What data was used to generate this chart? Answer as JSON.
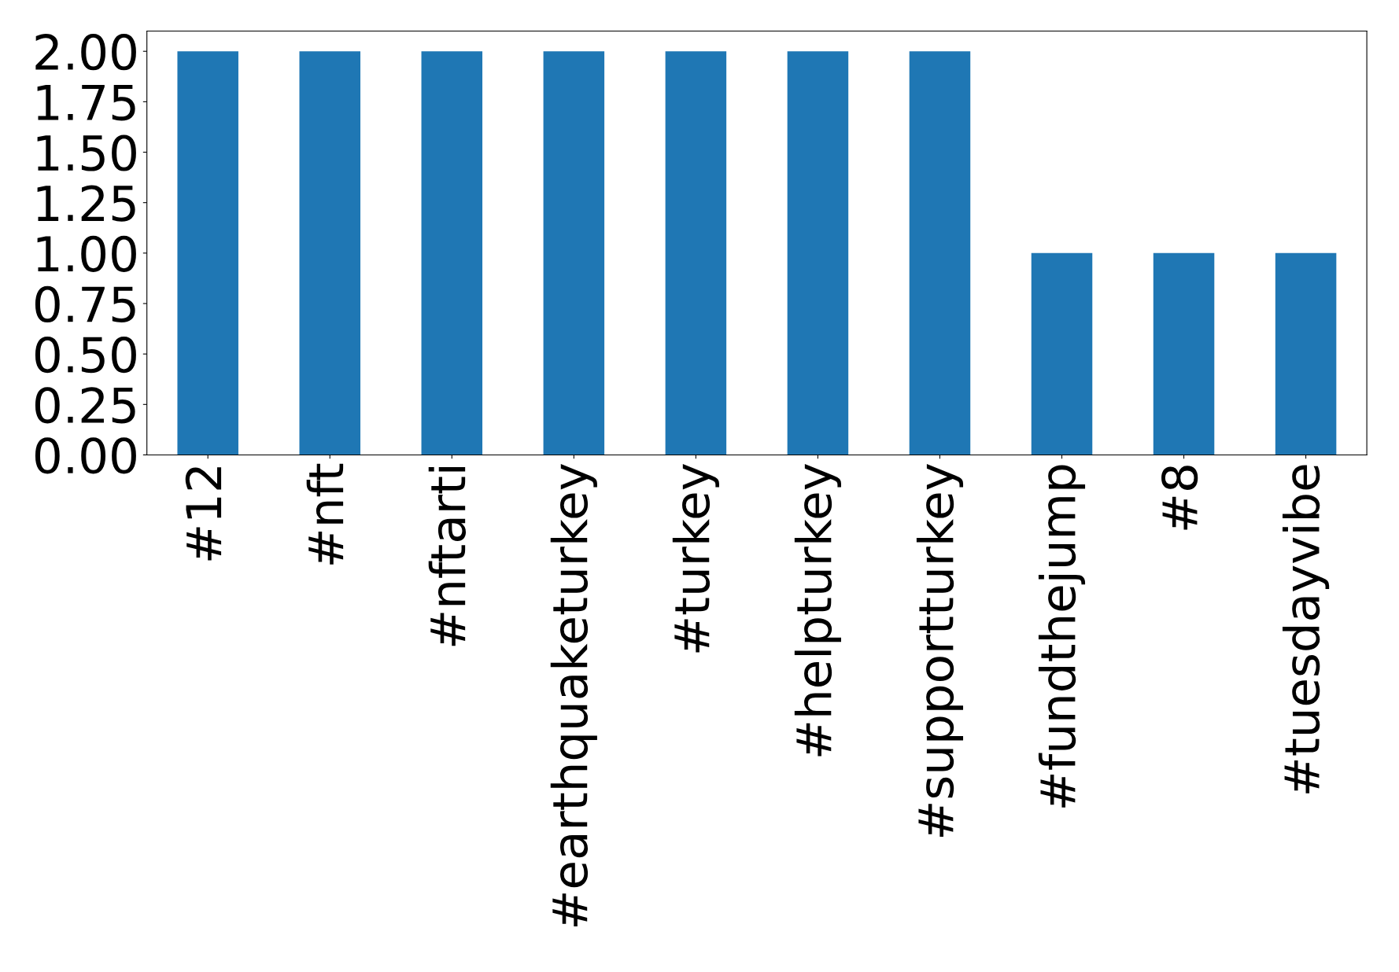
{
  "chart_data": {
    "type": "bar",
    "categories": [
      "#12",
      "#nft",
      "#nftarti",
      "#earthquaketurkey",
      "#turkey",
      "#helpturkey",
      "#supportturkey",
      "#fundthejump",
      "#8",
      "#tuesdayvibe"
    ],
    "values": [
      2,
      2,
      2,
      2,
      2,
      2,
      2,
      1,
      1,
      1
    ],
    "color": "#1f77b4",
    "ylim": [
      0,
      2.1
    ],
    "yticks": [
      {
        "value": 0,
        "label": "0.00"
      },
      {
        "value": 0.25,
        "label": "0.25"
      },
      {
        "value": 0.5,
        "label": "0.50"
      },
      {
        "value": 0.75,
        "label": "0.75"
      },
      {
        "value": 1,
        "label": "1.00"
      },
      {
        "value": 1.25,
        "label": "1.25"
      },
      {
        "value": 1.5,
        "label": "1.50"
      },
      {
        "value": 1.75,
        "label": "1.75"
      },
      {
        "value": 2,
        "label": "2.00"
      }
    ],
    "grid": false,
    "legend": false
  }
}
